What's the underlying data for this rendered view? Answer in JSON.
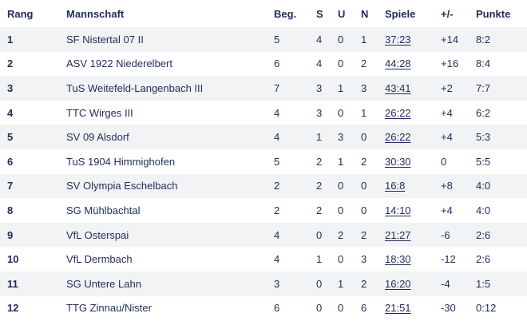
{
  "table": {
    "headers": {
      "rang": "Rang",
      "mannschaft": "Mannschaft",
      "beg": "Beg.",
      "s": "S",
      "u": "U",
      "n": "N",
      "spiele": "Spiele",
      "diff": "+/-",
      "punkte": "Punkte"
    },
    "rows": [
      {
        "rang": "1",
        "team": "SF Nistertal 07 II",
        "beg": "5",
        "s": "4",
        "u": "0",
        "n": "1",
        "spiele": "37:23",
        "diff": "+14",
        "punkte": "8:2"
      },
      {
        "rang": "2",
        "team": "ASV 1922 Niederelbert",
        "beg": "6",
        "s": "4",
        "u": "0",
        "n": "2",
        "spiele": "44:28",
        "diff": "+16",
        "punkte": "8:4"
      },
      {
        "rang": "3",
        "team": "TuS Weitefeld-Langenbach III",
        "beg": "7",
        "s": "3",
        "u": "1",
        "n": "3",
        "spiele": "43:41",
        "diff": "+2",
        "punkte": "7:7"
      },
      {
        "rang": "4",
        "team": "TTC Wirges III",
        "beg": "4",
        "s": "3",
        "u": "0",
        "n": "1",
        "spiele": "26:22",
        "diff": "+4",
        "punkte": "6:2"
      },
      {
        "rang": "5",
        "team": "SV 09 Alsdorf",
        "beg": "4",
        "s": "1",
        "u": "3",
        "n": "0",
        "spiele": "26:22",
        "diff": "+4",
        "punkte": "5:3"
      },
      {
        "rang": "6",
        "team": "TuS 1904 Himmighofen",
        "beg": "5",
        "s": "2",
        "u": "1",
        "n": "2",
        "spiele": "30:30",
        "diff": "0",
        "punkte": "5:5"
      },
      {
        "rang": "7",
        "team": "SV Olympia Eschelbach",
        "beg": "2",
        "s": "2",
        "u": "0",
        "n": "0",
        "spiele": "16:8",
        "diff": "+8",
        "punkte": "4:0"
      },
      {
        "rang": "8",
        "team": "SG Mühlbachtal",
        "beg": "2",
        "s": "2",
        "u": "0",
        "n": "0",
        "spiele": "14:10",
        "diff": "+4",
        "punkte": "4:0"
      },
      {
        "rang": "9",
        "team": "VfL Osterspai",
        "beg": "4",
        "s": "0",
        "u": "2",
        "n": "2",
        "spiele": "21:27",
        "diff": "-6",
        "punkte": "2:6"
      },
      {
        "rang": "10",
        "team": "VfL Dermbach",
        "beg": "4",
        "s": "1",
        "u": "0",
        "n": "3",
        "spiele": "18:30",
        "diff": "-12",
        "punkte": "2:6"
      },
      {
        "rang": "11",
        "team": "SG Untere Lahn",
        "beg": "3",
        "s": "0",
        "u": "1",
        "n": "2",
        "spiele": "16:20",
        "diff": "-4",
        "punkte": "1:5"
      },
      {
        "rang": "12",
        "team": "TTG Zinnau/Nister",
        "beg": "6",
        "s": "0",
        "u": "0",
        "n": "6",
        "spiele": "21:51",
        "diff": "-30",
        "punkte": "0:12"
      }
    ]
  }
}
